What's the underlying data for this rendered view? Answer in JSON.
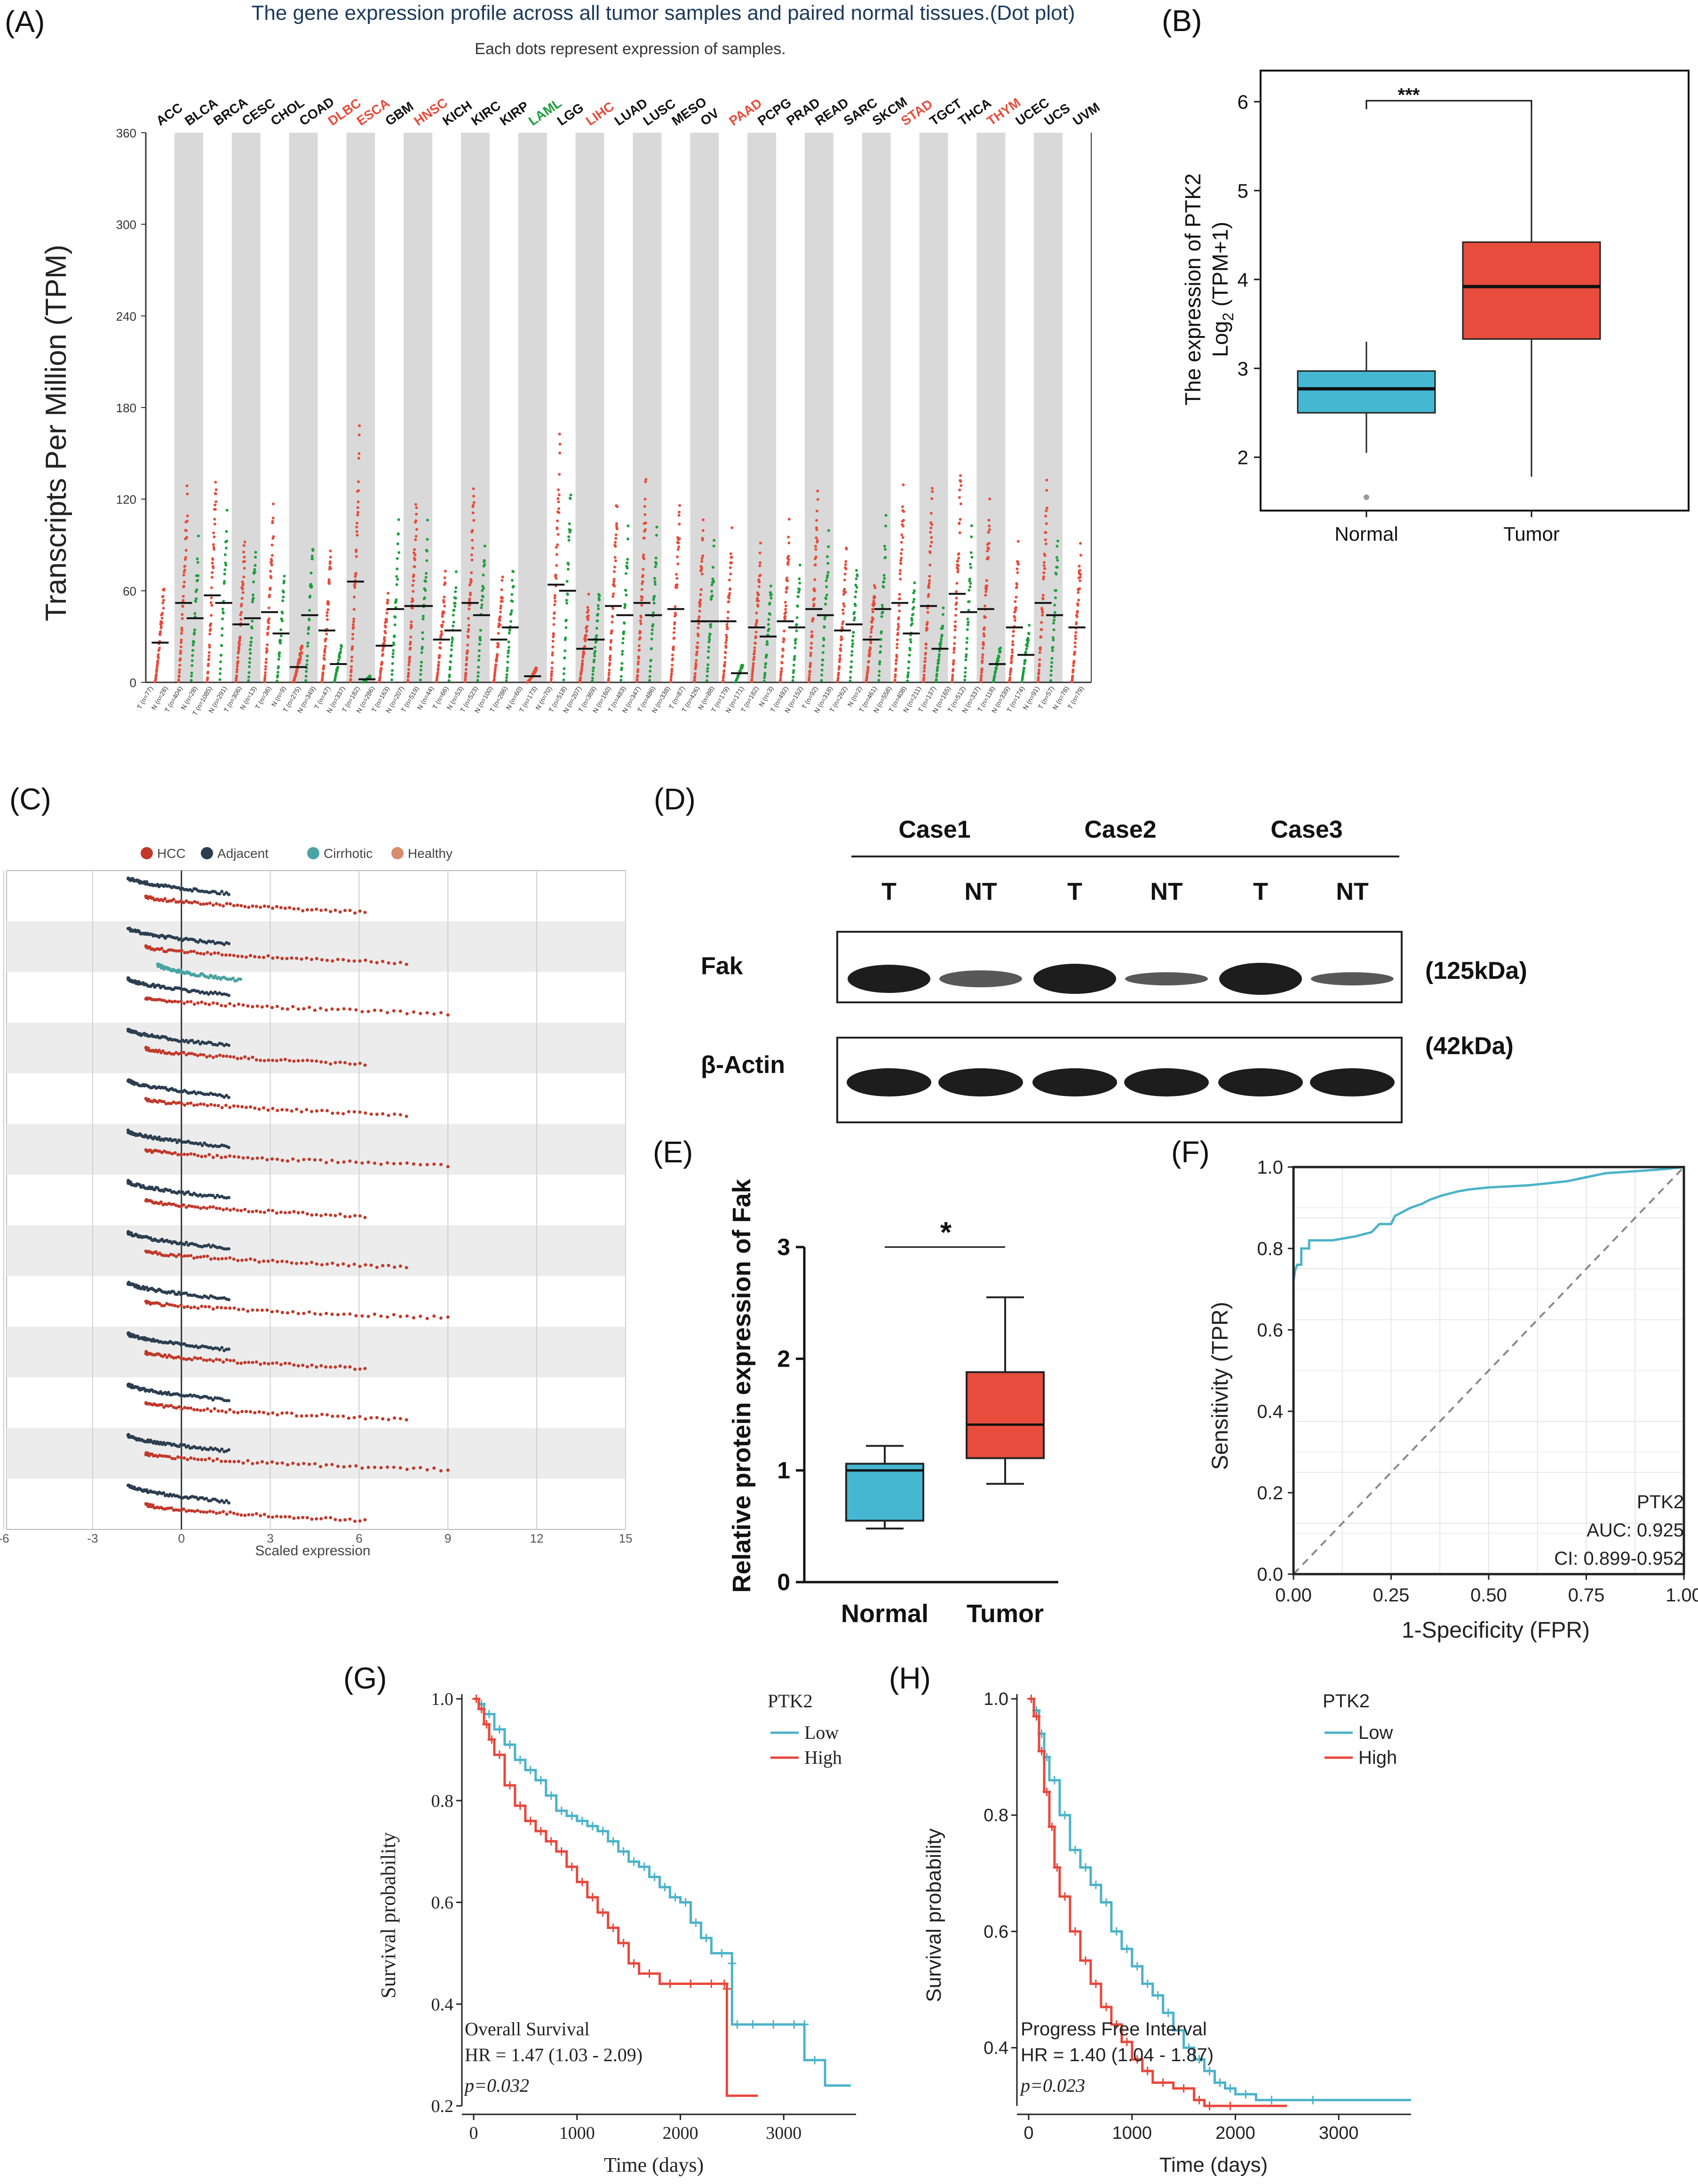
{
  "colors": {
    "tumor": "#e74c3c",
    "normal": "#1f9e3f",
    "box_normal": "#45b7d1",
    "box_tumor": "#e74c3c",
    "grey_band": "#d9d9d9",
    "hcc": "#c0392b",
    "adjacent": "#2c3e50",
    "cirrhotic": "#4aa3a2",
    "healthy": "#d98b6e",
    "low": "#4bb3c8",
    "high": "#e8473b",
    "roc": "#4bb3c8"
  },
  "panelA": {
    "label": "(A)",
    "title": "The gene expression profile across all tumor samples and paired normal tissues.(Dot plot)",
    "subtitle": "Each dots represent expression of samples.",
    "ylabel": "Transcripts Per Million (TPM)",
    "yticks": [
      "0",
      "60",
      "120",
      "180",
      "240",
      "300",
      "360"
    ],
    "cancers": [
      {
        "name": "ACC",
        "color": "#111111",
        "tumor_median": 26,
        "normal_median": null
      },
      {
        "name": "BLCA",
        "color": "#111111",
        "tumor_median": 52,
        "normal_median": 42
      },
      {
        "name": "BRCA",
        "color": "#111111",
        "tumor_median": 57,
        "normal_median": 52
      },
      {
        "name": "CESC",
        "color": "#111111",
        "tumor_median": 38,
        "normal_median": 42
      },
      {
        "name": "CHOL",
        "color": "#111111",
        "tumor_median": 46,
        "normal_median": 32
      },
      {
        "name": "COAD",
        "color": "#111111",
        "tumor_median": 10,
        "normal_median": 44
      },
      {
        "name": "DLBC",
        "color": "#e74c3c",
        "tumor_median": 34,
        "normal_median": 12
      },
      {
        "name": "ESCA",
        "color": "#e74c3c",
        "tumor_median": 66,
        "normal_median": 2
      },
      {
        "name": "GBM",
        "color": "#111111",
        "tumor_median": 24,
        "normal_median": 48
      },
      {
        "name": "HNSC",
        "color": "#e74c3c",
        "tumor_median": 50,
        "normal_median": 50
      },
      {
        "name": "KICH",
        "color": "#111111",
        "tumor_median": 28,
        "normal_median": 34
      },
      {
        "name": "KIRC",
        "color": "#111111",
        "tumor_median": 52,
        "normal_median": 44
      },
      {
        "name": "KIRP",
        "color": "#111111",
        "tumor_median": 28,
        "normal_median": 36
      },
      {
        "name": "LAML",
        "color": "#1f9e3f",
        "tumor_median": 4,
        "normal_median": null
      },
      {
        "name": "LGG",
        "color": "#111111",
        "tumor_median": 64,
        "normal_median": 60
      },
      {
        "name": "LIHC",
        "color": "#e74c3c",
        "tumor_median": 22,
        "normal_median": 28
      },
      {
        "name": "LUAD",
        "color": "#111111",
        "tumor_median": 50,
        "normal_median": 44
      },
      {
        "name": "LUSC",
        "color": "#111111",
        "tumor_median": 52,
        "normal_median": 44
      },
      {
        "name": "MESO",
        "color": "#111111",
        "tumor_median": 48,
        "normal_median": null
      },
      {
        "name": "OV",
        "color": "#111111",
        "tumor_median": 40,
        "normal_median": 40
      },
      {
        "name": "PAAD",
        "color": "#e74c3c",
        "tumor_median": 40,
        "normal_median": 6
      },
      {
        "name": "PCPG",
        "color": "#111111",
        "tumor_median": 36,
        "normal_median": 30
      },
      {
        "name": "PRAD",
        "color": "#111111",
        "tumor_median": 40,
        "normal_median": 36
      },
      {
        "name": "READ",
        "color": "#111111",
        "tumor_median": 48,
        "normal_median": 44
      },
      {
        "name": "SARC",
        "color": "#111111",
        "tumor_median": 34,
        "normal_median": 38
      },
      {
        "name": "SKCM",
        "color": "#111111",
        "tumor_median": 28,
        "normal_median": 48
      },
      {
        "name": "STAD",
        "color": "#e74c3c",
        "tumor_median": 52,
        "normal_median": 32
      },
      {
        "name": "TGCT",
        "color": "#111111",
        "tumor_median": 50,
        "normal_median": 22
      },
      {
        "name": "THCA",
        "color": "#111111",
        "tumor_median": 58,
        "normal_median": 46
      },
      {
        "name": "THYM",
        "color": "#e74c3c",
        "tumor_median": 48,
        "normal_median": 12
      },
      {
        "name": "UCEC",
        "color": "#111111",
        "tumor_median": 36,
        "normal_median": 18
      },
      {
        "name": "UCS",
        "color": "#111111",
        "tumor_median": 52,
        "normal_median": 44
      },
      {
        "name": "UVM",
        "color": "#111111",
        "tumor_median": 36,
        "normal_median": null
      }
    ],
    "sample_labels": [
      "T (n=77)",
      "N (n=28)",
      "T (n=404)",
      "N (n=28)",
      "T (n=1085)",
      "N (n=291)",
      "T (n=306)",
      "N (n=13)",
      "T (n=36)",
      "N (n=9)",
      "T (n=275)",
      "N (n=349)",
      "T (n=47)",
      "N (n=337)",
      "T (n=182)",
      "N (n=286)",
      "T (n=163)",
      "N (n=207)",
      "T (n=519)",
      "N (n=44)",
      "T (n=66)",
      "N (n=53)",
      "T (n=523)",
      "N (n=100)",
      "T (n=286)",
      "N (n=60)",
      "T (n=173)",
      "N (n=70)",
      "T (n=518)",
      "N (n=207)",
      "T (n=369)",
      "N (n=160)",
      "T (n=483)",
      "N (n=347)",
      "T (n=486)",
      "N (n=338)",
      "T (n=87)",
      "T (n=426)",
      "N (n=88)",
      "T (n=179)",
      "N (n=171)",
      "T (n=182)",
      "N (n=3)",
      "T (n=492)",
      "N (n=152)",
      "T (n=92)",
      "N (n=318)",
      "T (n=262)",
      "N (n=2)",
      "T (n=461)",
      "N (n=558)",
      "T (n=408)",
      "N (n=211)",
      "T (n=137)",
      "N (n=165)",
      "T (n=512)",
      "N (n=337)",
      "T (n=118)",
      "N (n=339)",
      "T (n=174)",
      "N (n=91)",
      "T (n=57)",
      "N (n=78)",
      "T (n=79)"
    ]
  },
  "panelB": {
    "label": "(B)",
    "significance": "***",
    "ylabel_line1": "The expression of PTK2",
    "ylabel_line2_pre": "Log",
    "ylabel_line2_sub": "2",
    "ylabel_line2_post": " (TPM+1)",
    "yticks": [
      "2",
      "3",
      "4",
      "5",
      "6"
    ],
    "groups": [
      {
        "name": "Normal",
        "whisker_low": 2.05,
        "q1": 2.5,
        "median": 2.77,
        "q3": 2.97,
        "whisker_high": 3.3,
        "outliers": [
          1.55
        ]
      },
      {
        "name": "Tumor",
        "whisker_low": 1.78,
        "q1": 3.33,
        "median": 3.92,
        "q3": 4.42,
        "whisker_high": 5.97,
        "outliers": []
      }
    ]
  },
  "panelC": {
    "label": "(C)",
    "legend": [
      "HCC",
      "Adjacent",
      "Cirrhotic",
      "Healthy"
    ],
    "xticks": [
      "-6",
      "-3",
      "0",
      "3",
      "6",
      "9",
      "12",
      "15"
    ],
    "xlabel": "Scaled expression"
  },
  "panelD": {
    "label": "(D)",
    "cases": [
      "Case1",
      "Case2",
      "Case3"
    ],
    "lanes": [
      "T",
      "NT",
      "T",
      "NT",
      "T",
      "NT"
    ],
    "fak_label": "Fak",
    "actin_label": "β-Actin",
    "fak_kda": "(125kDa)",
    "actin_kda": "(42kDa)"
  },
  "panelE": {
    "label": "(E)",
    "ylabel": "Relative protein expression of Fak",
    "yticks": [
      "0",
      "1",
      "2",
      "3"
    ],
    "significance": "*",
    "groups": [
      {
        "name": "Normal",
        "whisker_low": 0.48,
        "q1": 0.55,
        "median": 1.0,
        "q3": 1.06,
        "whisker_high": 1.22
      },
      {
        "name": "Tumor",
        "whisker_low": 0.88,
        "q1": 1.11,
        "median": 1.41,
        "q3": 1.88,
        "whisker_high": 2.55
      }
    ]
  },
  "panelF": {
    "label": "(F)",
    "ylabel": "Sensitivity (TPR)",
    "xlabel": "1-Specificity (FPR)",
    "ticks": [
      "0.0",
      "0.2",
      "0.4",
      "0.6",
      "0.8",
      "1.0"
    ],
    "xticks": [
      "0.00",
      "0.25",
      "0.50",
      "0.75",
      "1.00"
    ],
    "gene": "PTK2",
    "auc": "AUC: 0.925",
    "ci": "CI: 0.899-0.952",
    "roc_fpr": [
      0,
      0,
      0.005,
      0.01,
      0.02,
      0.02,
      0.04,
      0.04,
      0.1,
      0.16,
      0.2,
      0.22,
      0.25,
      0.26,
      0.3,
      0.33,
      0.35,
      0.38,
      0.42,
      0.45,
      0.5,
      0.6,
      0.7,
      0.75,
      0.8,
      0.88,
      0.95,
      1.0
    ],
    "roc_tpr": [
      0,
      0.72,
      0.75,
      0.76,
      0.76,
      0.8,
      0.8,
      0.82,
      0.82,
      0.83,
      0.84,
      0.86,
      0.86,
      0.88,
      0.9,
      0.91,
      0.92,
      0.93,
      0.94,
      0.945,
      0.95,
      0.955,
      0.965,
      0.975,
      0.985,
      0.99,
      0.995,
      1.0
    ]
  },
  "panelG": {
    "label": "(G)",
    "ylabel": "Survival probability",
    "xlabel": "Time (days)",
    "yticks": [
      "0.2",
      "0.4",
      "0.6",
      "0.8",
      "1.0"
    ],
    "xticks": [
      "0",
      "1000",
      "2000",
      "3000"
    ],
    "legend_title": "PTK2",
    "legend": [
      "Low",
      "High"
    ],
    "title": "Overall Survival",
    "hr": "HR = 1.47 (1.03  -  2.09)",
    "p": "p=0.032",
    "low_t": [
      0,
      50,
      100,
      200,
      300,
      400,
      500,
      600,
      700,
      800,
      900,
      1000,
      1100,
      1200,
      1300,
      1400,
      1500,
      1600,
      1700,
      1800,
      1900,
      2000,
      2100,
      2200,
      2300,
      2500,
      2500,
      2600,
      2800,
      3000,
      3200,
      3200,
      3400,
      3650
    ],
    "low_s": [
      1.0,
      0.99,
      0.97,
      0.94,
      0.91,
      0.88,
      0.86,
      0.84,
      0.81,
      0.78,
      0.77,
      0.76,
      0.75,
      0.74,
      0.72,
      0.7,
      0.68,
      0.67,
      0.65,
      0.63,
      0.61,
      0.6,
      0.56,
      0.53,
      0.5,
      0.48,
      0.36,
      0.36,
      0.36,
      0.36,
      0.36,
      0.29,
      0.24,
      0.24
    ],
    "high_t": [
      0,
      50,
      100,
      150,
      200,
      300,
      400,
      500,
      600,
      700,
      800,
      900,
      1000,
      1100,
      1200,
      1300,
      1400,
      1500,
      1600,
      1800,
      2000,
      2200,
      2400,
      2450,
      2450,
      2750
    ],
    "high_s": [
      1.0,
      0.98,
      0.95,
      0.92,
      0.89,
      0.83,
      0.79,
      0.76,
      0.74,
      0.72,
      0.7,
      0.67,
      0.64,
      0.61,
      0.58,
      0.55,
      0.52,
      0.48,
      0.46,
      0.44,
      0.44,
      0.44,
      0.44,
      0.43,
      0.22,
      0.22
    ]
  },
  "panelH": {
    "label": "(H)",
    "ylabel": "Survival probability",
    "xlabel": "Time (days)",
    "yticks": [
      "0.4",
      "0.6",
      "0.8",
      "1.0"
    ],
    "xticks": [
      "0",
      "1000",
      "2000",
      "3000"
    ],
    "legend_title": "PTK2",
    "legend": [
      "Low",
      "High"
    ],
    "title": "Progress Free Interval",
    "hr": "HR = 1.40 (1.04  -  1.87)",
    "p": "p=0.023",
    "low_t": [
      0,
      50,
      100,
      150,
      200,
      300,
      400,
      500,
      600,
      700,
      800,
      900,
      1000,
      1100,
      1200,
      1300,
      1400,
      1500,
      1600,
      1700,
      1800,
      1900,
      2000,
      2200,
      2500,
      3000,
      3700
    ],
    "low_s": [
      1.0,
      0.98,
      0.94,
      0.9,
      0.86,
      0.8,
      0.74,
      0.71,
      0.68,
      0.65,
      0.6,
      0.57,
      0.54,
      0.51,
      0.49,
      0.46,
      0.43,
      0.4,
      0.38,
      0.36,
      0.34,
      0.33,
      0.32,
      0.31,
      0.31,
      0.31,
      0.31
    ],
    "high_t": [
      0,
      50,
      100,
      150,
      200,
      250,
      300,
      400,
      500,
      600,
      700,
      800,
      900,
      1000,
      1100,
      1200,
      1400,
      1600,
      1700,
      1800,
      2100,
      2500
    ],
    "high_s": [
      1.0,
      0.97,
      0.91,
      0.84,
      0.78,
      0.71,
      0.66,
      0.6,
      0.55,
      0.51,
      0.47,
      0.44,
      0.41,
      0.38,
      0.36,
      0.34,
      0.33,
      0.31,
      0.3,
      0.3,
      0.3,
      0.3
    ]
  }
}
